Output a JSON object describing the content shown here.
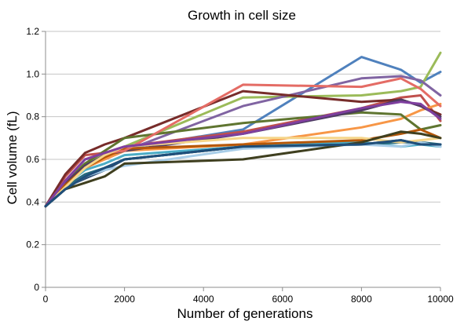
{
  "chart_data": {
    "type": "line",
    "title": "Growth in cell size",
    "xlabel": "Number of generations",
    "ylabel": "Cell volume (fL)",
    "xlim": [
      0,
      10000
    ],
    "ylim": [
      0,
      1.2
    ],
    "xticks": [
      0,
      2000,
      4000,
      6000,
      8000,
      10000
    ],
    "xtick_labels": [
      "0",
      "2000",
      "4000",
      "6000",
      "8000",
      "10000"
    ],
    "yticks": [
      0,
      0.2,
      0.4,
      0.6,
      0.8,
      1.0,
      1.2
    ],
    "ytick_labels": [
      "0",
      "0.2",
      "0.4",
      "0.6",
      "0.8",
      "1.0",
      "1.2"
    ],
    "grid": "horizontal",
    "legend": "none",
    "x": [
      0,
      500,
      1000,
      1500,
      2000,
      5000,
      8000,
      9000,
      9500,
      10000
    ],
    "series": [
      {
        "color": "#4F81BD",
        "values": [
          0.38,
          0.49,
          0.6,
          0.62,
          0.65,
          0.74,
          1.08,
          1.02,
          0.96,
          1.01
        ]
      },
      {
        "color": "#C0504D",
        "values": [
          0.38,
          0.52,
          0.62,
          0.63,
          0.66,
          0.73,
          0.84,
          0.89,
          0.9,
          0.78
        ]
      },
      {
        "color": "#9BBB59",
        "values": [
          0.38,
          0.5,
          0.58,
          0.62,
          0.66,
          0.89,
          0.9,
          0.92,
          0.94,
          1.1
        ]
      },
      {
        "color": "#8064A2",
        "values": [
          0.38,
          0.5,
          0.57,
          0.6,
          0.64,
          0.85,
          0.98,
          0.99,
          0.97,
          0.9
        ]
      },
      {
        "color": "#4BACC6",
        "values": [
          0.38,
          0.48,
          0.55,
          0.58,
          0.62,
          0.66,
          0.68,
          0.66,
          0.67,
          0.66
        ]
      },
      {
        "color": "#F79646",
        "values": [
          0.38,
          0.48,
          0.56,
          0.6,
          0.64,
          0.67,
          0.75,
          0.79,
          0.83,
          0.86
        ]
      },
      {
        "color": "#2C4D75",
        "values": [
          0.38,
          0.47,
          0.51,
          0.55,
          0.6,
          0.66,
          0.67,
          0.69,
          0.67,
          0.67
        ]
      },
      {
        "color": "#772C2A",
        "values": [
          0.38,
          0.53,
          0.63,
          0.67,
          0.7,
          0.92,
          0.87,
          0.88,
          0.85,
          0.81
        ]
      },
      {
        "color": "#5F7530",
        "values": [
          0.38,
          0.49,
          0.58,
          0.64,
          0.7,
          0.77,
          0.82,
          0.81,
          0.74,
          0.76
        ]
      },
      {
        "color": "#4D3B62",
        "values": [
          0.38,
          0.49,
          0.57,
          0.62,
          0.64,
          0.72,
          0.83,
          0.88,
          0.85,
          0.8
        ]
      },
      {
        "color": "#276A7C",
        "values": [
          0.38,
          0.47,
          0.53,
          0.56,
          0.6,
          0.66,
          0.67,
          0.68,
          0.68,
          0.67
        ]
      },
      {
        "color": "#B65708",
        "values": [
          0.38,
          0.48,
          0.56,
          0.61,
          0.65,
          0.67,
          0.69,
          0.72,
          0.74,
          0.7
        ]
      },
      {
        "color": "#E46C65",
        "values": [
          0.38,
          0.5,
          0.6,
          0.63,
          0.64,
          0.95,
          0.94,
          0.98,
          0.93,
          0.85
        ]
      },
      {
        "color": "#F5D58A",
        "values": [
          0.38,
          0.47,
          0.56,
          0.62,
          0.66,
          0.7,
          0.7,
          0.68,
          0.69,
          0.7
        ]
      },
      {
        "color": "#A8CDE8",
        "values": [
          0.38,
          0.46,
          0.52,
          0.55,
          0.57,
          0.65,
          0.67,
          0.66,
          0.68,
          0.66
        ]
      },
      {
        "color": "#3F3F1F",
        "values": [
          0.38,
          0.46,
          0.49,
          0.52,
          0.58,
          0.6,
          0.68,
          0.73,
          0.72,
          0.7
        ]
      },
      {
        "color": "#7F3F9F",
        "values": [
          0.38,
          0.5,
          0.6,
          0.63,
          0.66,
          0.72,
          0.84,
          0.87,
          0.86,
          0.79
        ]
      },
      {
        "color": "#1F4E79",
        "values": [
          0.38,
          0.46,
          0.52,
          0.56,
          0.6,
          0.66,
          0.67,
          0.69,
          0.67,
          0.67
        ]
      }
    ]
  }
}
